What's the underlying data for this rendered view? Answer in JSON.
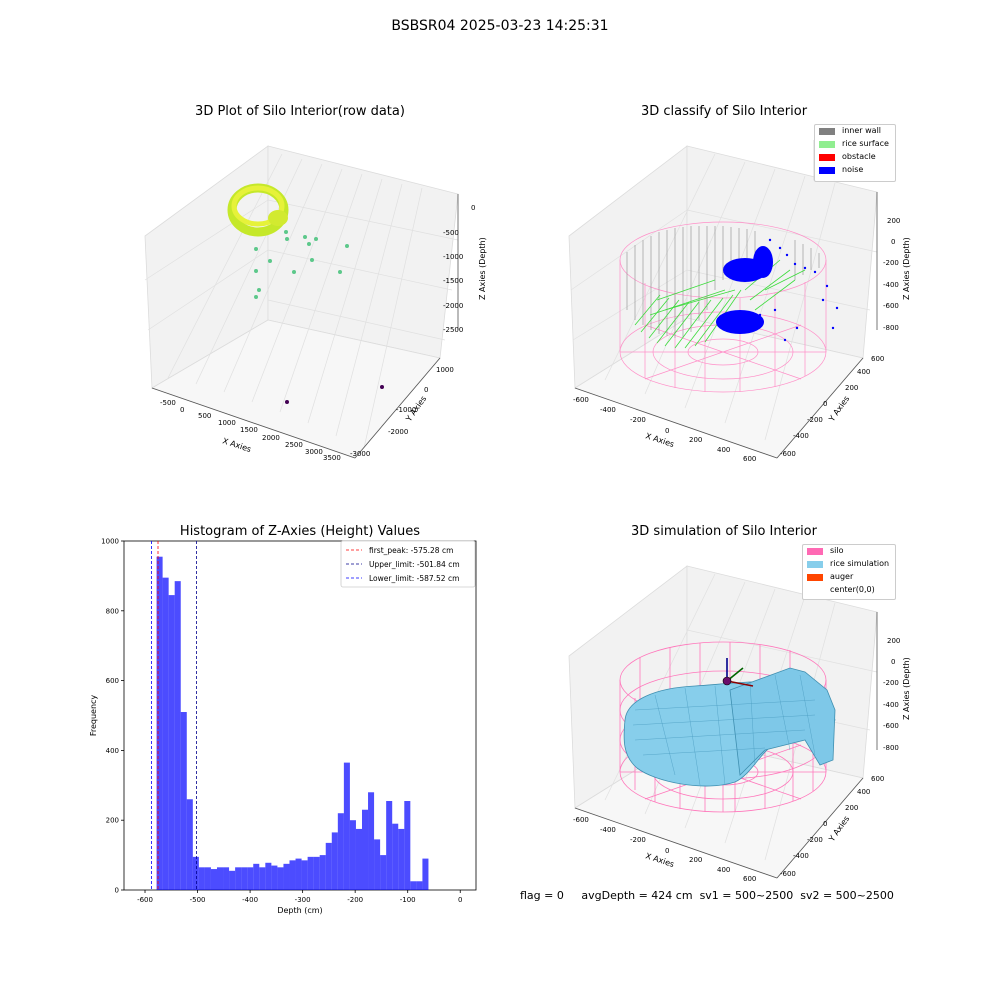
{
  "figure": {
    "suptitle": "BSBSR04 2025-03-23 14:25:31",
    "footer": {
      "flag": "flag = 0",
      "avg_depth": "avgDepth = 424 cm",
      "sv1": "sv1 = 500~2500",
      "sv2": "sv2 = 500~2500"
    }
  },
  "panels": {
    "raw": {
      "title": "3D Plot of Silo Interior(row data)",
      "xlabel": "X Axies",
      "ylabel": "Y Axies",
      "zlabel": "Z Axies (Depth)",
      "xticks": [
        "-500",
        "0",
        "500",
        "1000",
        "1500",
        "2000",
        "2500",
        "3000",
        "3500"
      ],
      "yticks": [
        "-3000",
        "-2000",
        "-1000",
        "0",
        "1000"
      ],
      "zticks": [
        "-2500",
        "-2000",
        "-1500",
        "-1000",
        "-500",
        "0"
      ]
    },
    "classify": {
      "title": "3D classify of Silo Interior",
      "xlabel": "X Axies",
      "ylabel": "Y Axies",
      "zlabel": "Z Axies (Depth)",
      "xticks": [
        "-600",
        "-400",
        "-200",
        "0",
        "200",
        "400",
        "600"
      ],
      "yticks": [
        "-600",
        "-400",
        "-200",
        "0",
        "200",
        "400",
        "600"
      ],
      "zticks": [
        "-800",
        "-600",
        "-400",
        "-200",
        "0",
        "200"
      ],
      "legend": [
        {
          "label": "inner wall",
          "color": "#808080"
        },
        {
          "label": "rice surface",
          "color": "#90ee90"
        },
        {
          "label": "obstacle",
          "color": "#ff0000"
        },
        {
          "label": "noise",
          "color": "#0000ff"
        }
      ]
    },
    "simulation": {
      "title": "3D simulation of Silo Interior",
      "xlabel": "X Axies",
      "ylabel": "Y Axies",
      "zlabel": "Z Axies (Depth)",
      "xticks": [
        "-600",
        "-400",
        "-200",
        "0",
        "200",
        "400",
        "600"
      ],
      "yticks": [
        "-600",
        "-400",
        "-200",
        "0",
        "200",
        "400",
        "600"
      ],
      "zticks": [
        "-800",
        "-600",
        "-400",
        "-200",
        "0",
        "200"
      ],
      "legend": [
        {
          "label": "silo",
          "color": "#ff69b4"
        },
        {
          "label": "rice simulation",
          "color": "#87ceeb"
        },
        {
          "label": "auger",
          "color": "#ff4500"
        },
        {
          "label": "center(0,0)",
          "color": ""
        }
      ]
    }
  },
  "chart_data": {
    "type": "bar",
    "title": "Histogram of Z-Axies (Height) Values",
    "xlabel": "Depth (cm)",
    "ylabel": "Frequency",
    "xlim": [
      -640,
      30
    ],
    "ylim": [
      0,
      1000
    ],
    "xticks": [
      -600,
      -500,
      -400,
      -300,
      -200,
      -100,
      0
    ],
    "yticks": [
      0,
      200,
      400,
      600,
      800,
      1000
    ],
    "bin_start": -578,
    "bin_width": 11.5,
    "values": [
      955,
      895,
      845,
      885,
      510,
      260,
      95,
      65,
      65,
      60,
      65,
      65,
      55,
      65,
      65,
      65,
      75,
      65,
      78,
      70,
      65,
      75,
      85,
      90,
      85,
      95,
      95,
      100,
      135,
      165,
      220,
      365,
      200,
      175,
      230,
      280,
      145,
      100,
      255,
      190,
      175,
      255,
      25,
      25,
      90
    ],
    "bar_color": "#0000ff",
    "lines": [
      {
        "label": "first_peak: -575.28 cm",
        "value": -575.28,
        "color": "#ff0000"
      },
      {
        "label": "Upper_limit: -501.84 cm",
        "value": -501.84,
        "color": "#00008b"
      },
      {
        "label": "Lower_limit: -587.52 cm",
        "value": -587.52,
        "color": "#0000ff"
      }
    ],
    "legend_position": "top-right"
  }
}
